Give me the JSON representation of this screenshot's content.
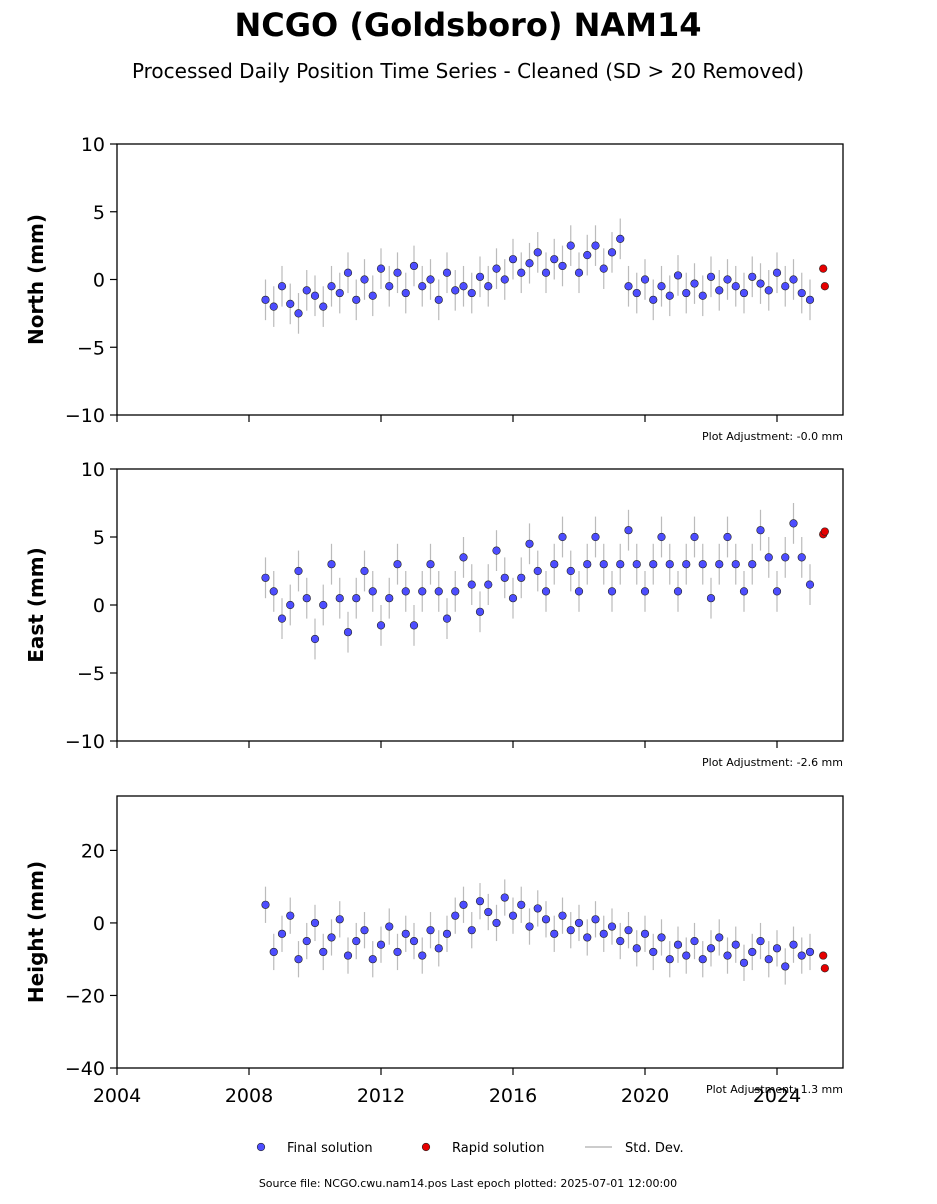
{
  "title": "NCGO (Goldsboro) NAM14",
  "subtitle": "Processed Daily Position Time Series - Cleaned (SD > 20 Removed)",
  "source": "Source file: NCGO.cwu.nam14.pos  Last epoch plotted: 2025-07-01 12:00:00",
  "chart_data": [
    {
      "type": "scatter",
      "ylabel": "North (mm)",
      "annotation": "Plot Adjustment: -0.0 mm",
      "xlim": [
        2004,
        2026
      ],
      "xticks": [
        2004,
        2008,
        2012,
        2016,
        2020,
        2024
      ],
      "show_xticklabels": false,
      "ylim": [
        -10,
        10
      ],
      "yticks": [
        {
          "value": -10,
          "label": "−10"
        },
        {
          "value": -5,
          "label": "−5"
        },
        0,
        5,
        10
      ],
      "std": 1.5,
      "std_color": "#bbbbbb",
      "error_name": "Std. Dev.",
      "series": [
        {
          "name": "Final solution",
          "color": "#4d4dff",
          "x": [
            2008.5,
            2008.75,
            2009,
            2009.25,
            2009.5,
            2009.75,
            2010,
            2010.25,
            2010.5,
            2010.75,
            2011,
            2011.25,
            2011.5,
            2011.75,
            2012,
            2012.25,
            2012.5,
            2012.75,
            2013,
            2013.25,
            2013.5,
            2013.75,
            2014,
            2014.25,
            2014.5,
            2014.75,
            2015,
            2015.25,
            2015.5,
            2015.75,
            2016,
            2016.25,
            2016.5,
            2016.75,
            2017,
            2017.25,
            2017.5,
            2017.75,
            2018,
            2018.25,
            2018.5,
            2018.75,
            2019,
            2019.25,
            2019.5,
            2019.75,
            2020,
            2020.25,
            2020.5,
            2020.75,
            2021,
            2021.25,
            2021.5,
            2021.75,
            2022,
            2022.25,
            2022.5,
            2022.75,
            2023,
            2023.25,
            2023.5,
            2023.75,
            2024,
            2024.25,
            2024.5,
            2024.75,
            2025
          ],
          "values": [
            -1.5,
            -2,
            -0.5,
            -1.8,
            -2.5,
            -0.8,
            -1.2,
            -2,
            -0.5,
            -1,
            0.5,
            -1.5,
            0,
            -1.2,
            0.8,
            -0.5,
            0.5,
            -1,
            1,
            -0.5,
            0,
            -1.5,
            0.5,
            -0.8,
            -0.5,
            -1,
            0.2,
            -0.5,
            0.8,
            0,
            1.5,
            0.5,
            1.2,
            2,
            0.5,
            1.5,
            1,
            2.5,
            0.5,
            1.8,
            2.5,
            0.8,
            2,
            3,
            -0.5,
            -1,
            0,
            -1.5,
            -0.5,
            -1.2,
            0.3,
            -1,
            -0.3,
            -1.2,
            0.2,
            -0.8,
            0,
            -0.5,
            -1,
            0.2,
            -0.3,
            -0.8,
            0.5,
            -0.5,
            0,
            -1,
            -1.5
          ]
        },
        {
          "name": "Rapid solution",
          "color": "#e60000",
          "x": [
            2025.4,
            2025.45
          ],
          "values": [
            0.8,
            -0.5
          ]
        }
      ]
    },
    {
      "type": "scatter",
      "ylabel": "East (mm)",
      "annotation": "Plot Adjustment: -2.6 mm",
      "xlim": [
        2004,
        2026
      ],
      "xticks": [
        2004,
        2008,
        2012,
        2016,
        2020,
        2024
      ],
      "show_xticklabels": false,
      "ylim": [
        -10,
        10
      ],
      "yticks": [
        {
          "value": -10,
          "label": "−10"
        },
        {
          "value": -5,
          "label": "−5"
        },
        0,
        5,
        10
      ],
      "std": 1.5,
      "std_color": "#bbbbbb",
      "series": [
        {
          "color": "#4d4dff",
          "x": [
            2008.5,
            2008.75,
            2009,
            2009.25,
            2009.5,
            2009.75,
            2010,
            2010.25,
            2010.5,
            2010.75,
            2011,
            2011.25,
            2011.5,
            2011.75,
            2012,
            2012.25,
            2012.5,
            2012.75,
            2013,
            2013.25,
            2013.5,
            2013.75,
            2014,
            2014.25,
            2014.5,
            2014.75,
            2015,
            2015.25,
            2015.5,
            2015.75,
            2016,
            2016.25,
            2016.5,
            2016.75,
            2017,
            2017.25,
            2017.5,
            2017.75,
            2018,
            2018.25,
            2018.5,
            2018.75,
            2019,
            2019.25,
            2019.5,
            2019.75,
            2020,
            2020.25,
            2020.5,
            2020.75,
            2021,
            2021.25,
            2021.5,
            2021.75,
            2022,
            2022.25,
            2022.5,
            2022.75,
            2023,
            2023.25,
            2023.5,
            2023.75,
            2024,
            2024.25,
            2024.5,
            2024.75,
            2025
          ],
          "values": [
            2,
            1,
            -1,
            0,
            2.5,
            0.5,
            -2.5,
            0,
            3,
            0.5,
            -2,
            0.5,
            2.5,
            1,
            -1.5,
            0.5,
            3,
            1,
            -1.5,
            1,
            3,
            1,
            -1,
            1,
            3.5,
            1.5,
            -0.5,
            1.5,
            4,
            2,
            0.5,
            2,
            4.5,
            2.5,
            1,
            3,
            5,
            2.5,
            1,
            3,
            5,
            3,
            1,
            3,
            5.5,
            3,
            1,
            3,
            5,
            3,
            1,
            3,
            5,
            3,
            0.5,
            3,
            5,
            3,
            1,
            3,
            5.5,
            3.5,
            1,
            3.5,
            6,
            3.5,
            1.5
          ]
        },
        {
          "color": "#e60000",
          "x": [
            2025.4,
            2025.45
          ],
          "values": [
            5.2,
            5.4
          ]
        }
      ]
    },
    {
      "type": "scatter",
      "ylabel": "Height (mm)",
      "annotation": "Plot Adjustment: 1.3 mm",
      "xlim": [
        2004,
        2026
      ],
      "xticks": [
        2004,
        2008,
        2012,
        2016,
        2020,
        2024
      ],
      "show_xticklabels": true,
      "ylim": [
        -40,
        35
      ],
      "yticks": [
        {
          "value": -40,
          "label": "−40"
        },
        {
          "value": -20,
          "label": "−20"
        },
        0,
        20
      ],
      "std": 5,
      "std_color": "#bbbbbb",
      "series": [
        {
          "color": "#4d4dff",
          "x": [
            2008.5,
            2008.75,
            2009,
            2009.25,
            2009.5,
            2009.75,
            2010,
            2010.25,
            2010.5,
            2010.75,
            2011,
            2011.25,
            2011.5,
            2011.75,
            2012,
            2012.25,
            2012.5,
            2012.75,
            2013,
            2013.25,
            2013.5,
            2013.75,
            2014,
            2014.25,
            2014.5,
            2014.75,
            2015,
            2015.25,
            2015.5,
            2015.75,
            2016,
            2016.25,
            2016.5,
            2016.75,
            2017,
            2017.25,
            2017.5,
            2017.75,
            2018,
            2018.25,
            2018.5,
            2018.75,
            2019,
            2019.25,
            2019.5,
            2019.75,
            2020,
            2020.25,
            2020.5,
            2020.75,
            2021,
            2021.25,
            2021.5,
            2021.75,
            2022,
            2022.25,
            2022.5,
            2022.75,
            2023,
            2023.25,
            2023.5,
            2023.75,
            2024,
            2024.25,
            2024.5,
            2024.75,
            2025
          ],
          "values": [
            5,
            -8,
            -3,
            2,
            -10,
            -5,
            0,
            -8,
            -4,
            1,
            -9,
            -5,
            -2,
            -10,
            -6,
            -1,
            -8,
            -3,
            -5,
            -9,
            -2,
            -7,
            -3,
            2,
            5,
            -2,
            6,
            3,
            0,
            7,
            2,
            5,
            -1,
            4,
            1,
            -3,
            2,
            -2,
            0,
            -4,
            1,
            -3,
            -1,
            -5,
            -2,
            -7,
            -3,
            -8,
            -4,
            -10,
            -6,
            -9,
            -5,
            -10,
            -7,
            -4,
            -9,
            -6,
            -11,
            -8,
            -5,
            -10,
            -7,
            -12,
            -6,
            -9,
            -8
          ]
        },
        {
          "color": "#e60000",
          "x": [
            2025.4,
            2025.45
          ],
          "values": [
            -9,
            -12.5
          ]
        }
      ]
    }
  ]
}
